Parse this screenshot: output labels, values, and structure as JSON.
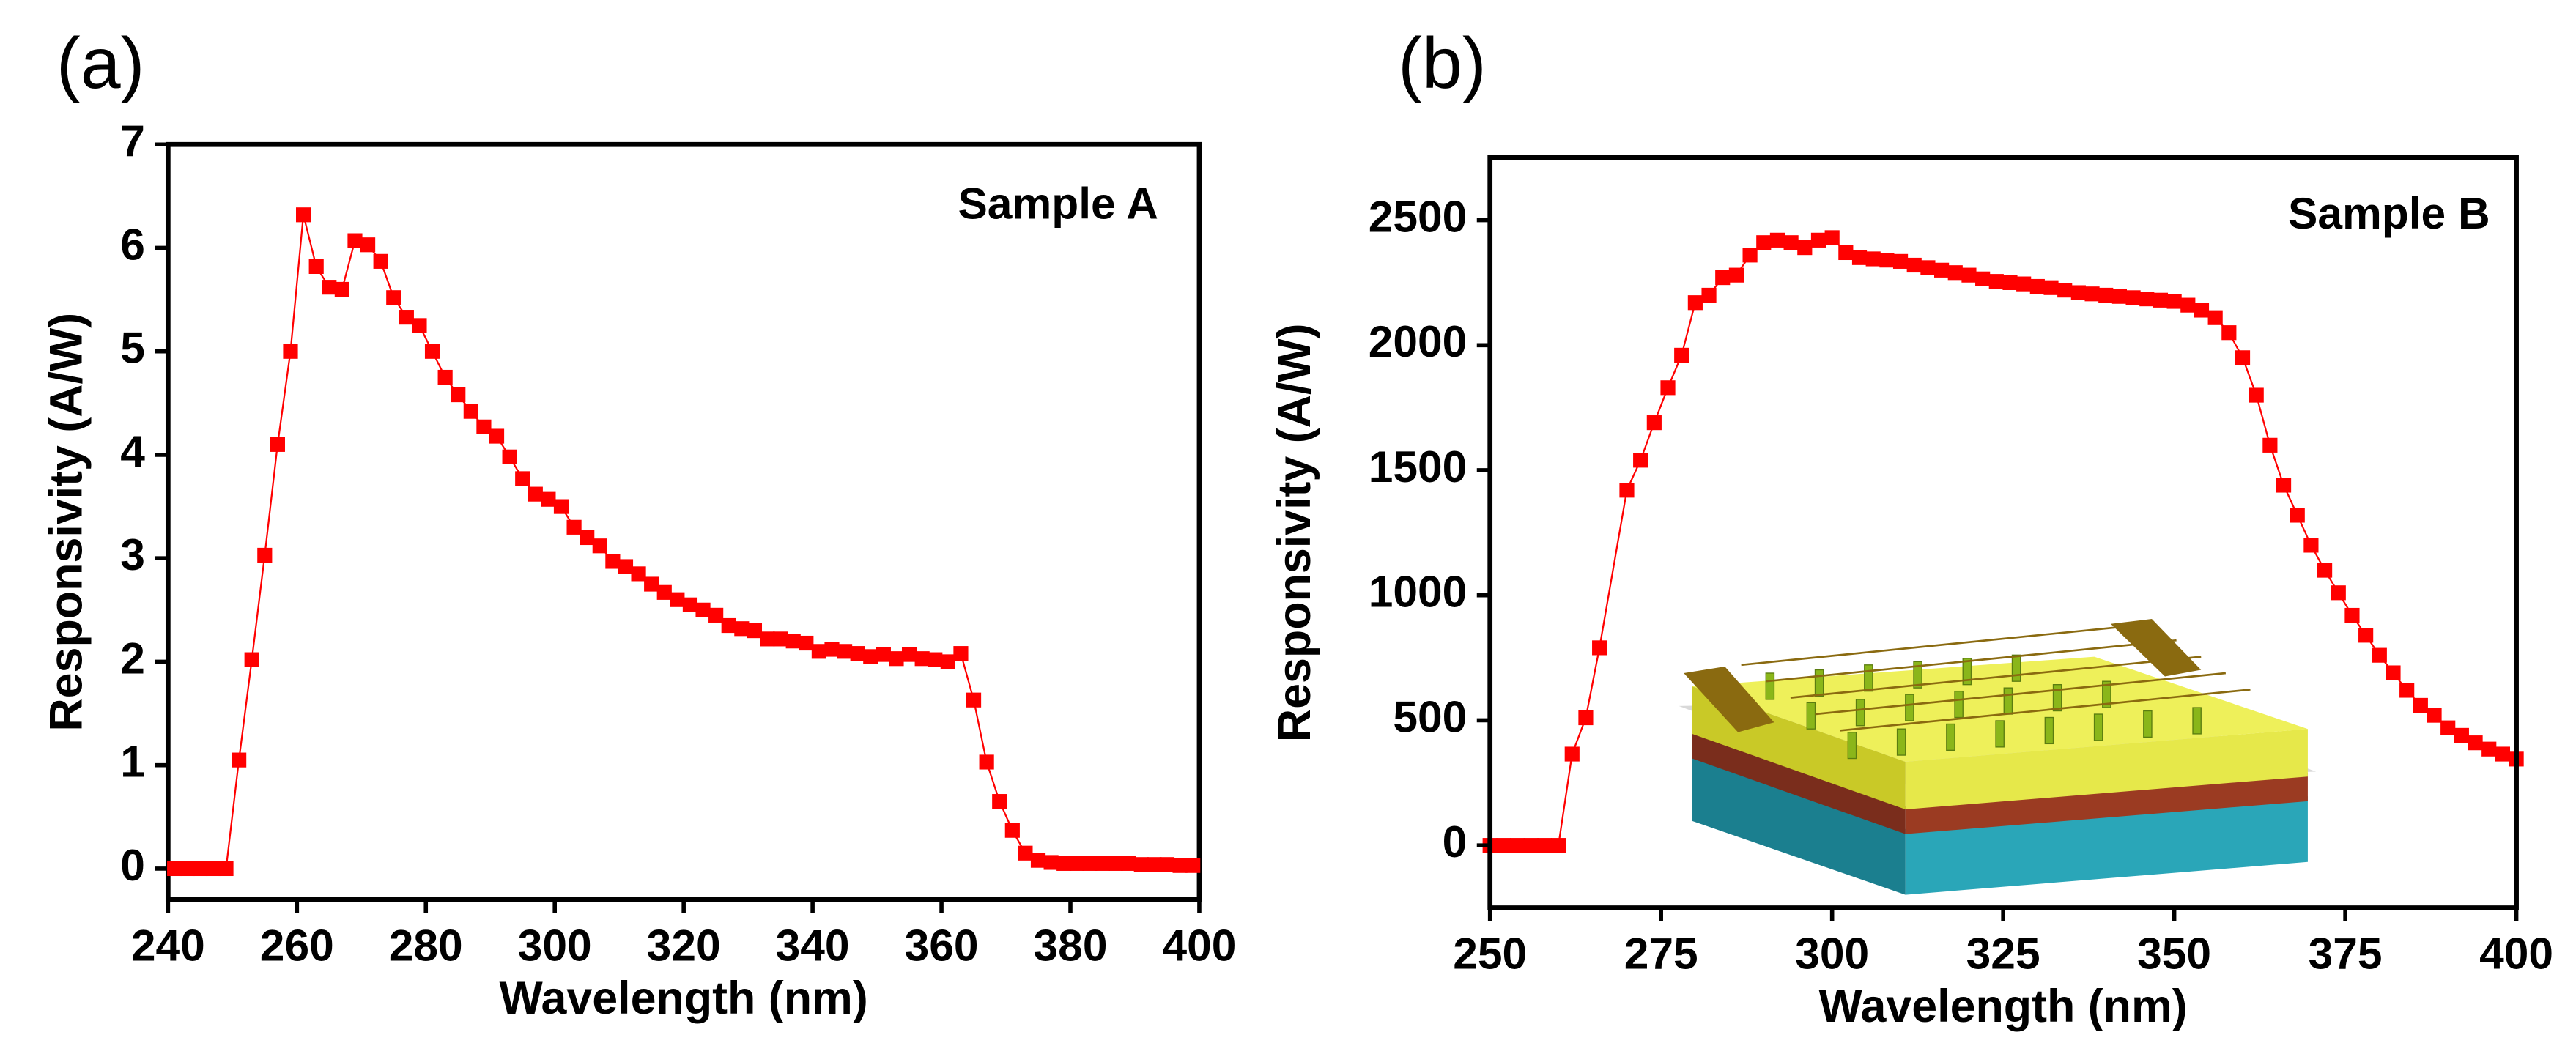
{
  "chart_data": [
    {
      "type": "scatter-line",
      "panel": "(a)",
      "annotation": "Sample A",
      "xlabel": "Wavelength (nm)",
      "ylabel": "Responsivity (A/W)",
      "color": "#ff0000",
      "xlim": [
        240,
        400
      ],
      "ylim": [
        -0.3,
        7
      ],
      "xticks": [
        240,
        260,
        280,
        300,
        320,
        340,
        360,
        380,
        400
      ],
      "yticks": [
        0,
        1,
        2,
        3,
        4,
        5,
        6,
        7
      ],
      "x": [
        241,
        243,
        245,
        247,
        249,
        251,
        253,
        255,
        257,
        259,
        261,
        263,
        265,
        267,
        269,
        271,
        273,
        275,
        277,
        279,
        281,
        283,
        285,
        287,
        289,
        291,
        293,
        295,
        297,
        299,
        301,
        303,
        305,
        307,
        309,
        311,
        313,
        315,
        317,
        319,
        321,
        323,
        325,
        327,
        329,
        331,
        333,
        335,
        337,
        339,
        341,
        343,
        345,
        347,
        349,
        351,
        353,
        355,
        357,
        359,
        361,
        363,
        365,
        367,
        369,
        371,
        373,
        375,
        377,
        379,
        381,
        383,
        385,
        387,
        389,
        391,
        393,
        395,
        397,
        399
      ],
      "values": [
        0,
        0,
        0,
        0,
        0,
        1.05,
        2.02,
        3.03,
        4.1,
        5.0,
        6.32,
        5.82,
        5.62,
        5.6,
        6.07,
        6.03,
        5.87,
        5.52,
        5.33,
        5.25,
        5.0,
        4.75,
        4.58,
        4.42,
        4.27,
        4.18,
        3.98,
        3.77,
        3.62,
        3.57,
        3.5,
        3.3,
        3.2,
        3.12,
        2.97,
        2.92,
        2.85,
        2.75,
        2.67,
        2.6,
        2.55,
        2.5,
        2.45,
        2.35,
        2.32,
        2.3,
        2.22,
        2.22,
        2.2,
        2.18,
        2.1,
        2.12,
        2.1,
        2.08,
        2.05,
        2.07,
        2.03,
        2.07,
        2.03,
        2.02,
        2.0,
        2.08,
        1.63,
        1.03,
        0.65,
        0.37,
        0.15,
        0.08,
        0.06,
        0.05,
        0.05,
        0.05,
        0.05,
        0.05,
        0.05,
        0.04,
        0.04,
        0.04,
        0.03,
        0.03
      ]
    },
    {
      "type": "scatter-line",
      "panel": "(b)",
      "annotation": "Sample B",
      "xlabel": "Wavelength (nm)",
      "ylabel": "Responsivity (A/W)",
      "color": "#ff0000",
      "xlim": [
        250,
        400
      ],
      "ylim": [
        -250,
        2750
      ],
      "xticks": [
        250,
        275,
        300,
        325,
        350,
        375,
        400
      ],
      "yticks": [
        0,
        500,
        1000,
        1500,
        2000,
        2500
      ],
      "x": [
        250,
        252,
        254,
        256,
        258,
        260,
        262,
        264,
        266,
        270,
        272,
        274,
        276,
        278,
        280,
        282,
        284,
        286,
        288,
        290,
        292,
        294,
        296,
        298,
        300,
        302,
        304,
        306,
        308,
        310,
        312,
        314,
        316,
        318,
        320,
        322,
        324,
        326,
        328,
        330,
        332,
        334,
        336,
        338,
        340,
        342,
        344,
        346,
        348,
        350,
        352,
        354,
        356,
        358,
        360,
        362,
        364,
        366,
        368,
        370,
        372,
        374,
        376,
        378,
        380,
        382,
        384,
        386,
        388,
        390,
        392,
        394,
        396,
        398,
        400
      ],
      "values": [
        0,
        0,
        0,
        0,
        0,
        0,
        365,
        510,
        790,
        1420,
        1540,
        1690,
        1830,
        1960,
        2170,
        2200,
        2270,
        2280,
        2360,
        2410,
        2420,
        2410,
        2390,
        2420,
        2430,
        2370,
        2350,
        2345,
        2340,
        2335,
        2320,
        2310,
        2300,
        2290,
        2280,
        2265,
        2255,
        2250,
        2245,
        2235,
        2230,
        2220,
        2210,
        2205,
        2200,
        2195,
        2190,
        2185,
        2180,
        2175,
        2160,
        2140,
        2110,
        2050,
        1950,
        1800,
        1600,
        1440,
        1320,
        1200,
        1100,
        1010,
        920,
        840,
        760,
        690,
        620,
        560,
        520,
        470,
        440,
        410,
        385,
        365,
        345
      ]
    }
  ]
}
